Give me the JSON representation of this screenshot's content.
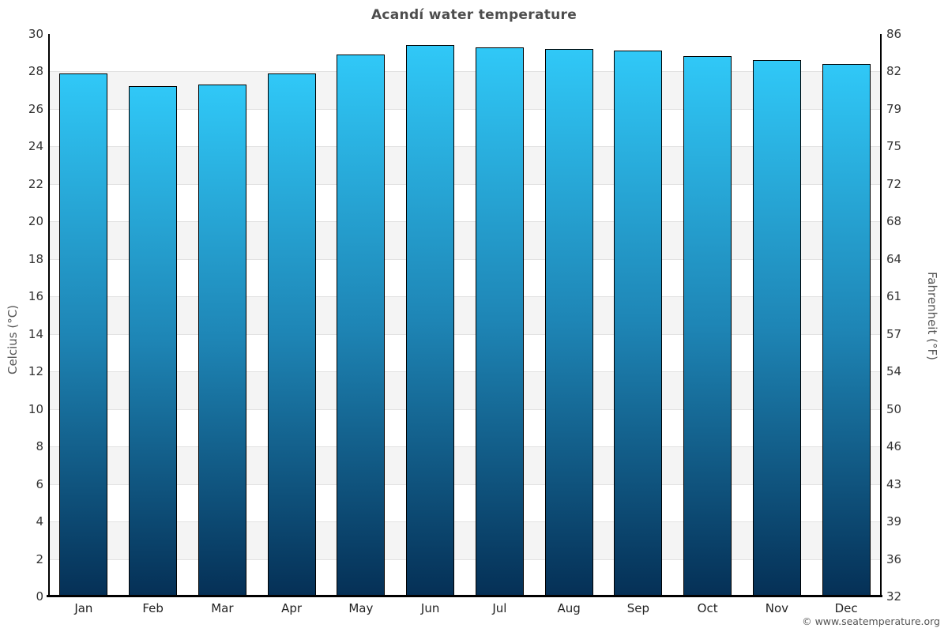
{
  "title": "Acandí water temperature",
  "footer_credit": "© www.seatemperature.org",
  "axes": {
    "left_label": "Celcius (°C)",
    "right_label": "Fahrenheit (°F)"
  },
  "colors": {
    "bar_gradient_top": "#30c8f7",
    "bar_gradient_mid": "#1e85b5",
    "bar_gradient_bottom": "#053056",
    "bar_border": "#000000",
    "band_gray": "#f4f4f4",
    "band_white": "#ffffff",
    "gridline": "#e2e2e2",
    "axis_line": "#000000",
    "title_text": "#4d4d4d",
    "tick_text": "#333333",
    "axis_label_text": "#555555",
    "footer_text": "#555555"
  },
  "chart_data": {
    "type": "bar",
    "title": "Acandí water temperature",
    "categories": [
      "Jan",
      "Feb",
      "Mar",
      "Apr",
      "May",
      "Jun",
      "Jul",
      "Aug",
      "Sep",
      "Oct",
      "Nov",
      "Dec"
    ],
    "values": [
      27.9,
      27.2,
      27.3,
      27.9,
      28.9,
      29.4,
      29.3,
      29.2,
      29.1,
      28.8,
      28.6,
      28.4
    ],
    "xlabel": "",
    "ylabel": "Celcius (°C)",
    "ylabel_right": "Fahrenheit (°F)",
    "ylim": [
      0,
      30
    ],
    "ytick_step": 2,
    "yticks_left": [
      0,
      2,
      4,
      6,
      8,
      10,
      12,
      14,
      16,
      18,
      20,
      22,
      24,
      26,
      28,
      30
    ],
    "yticks_right": [
      32,
      36,
      39,
      43,
      46,
      50,
      54,
      57,
      61,
      64,
      68,
      72,
      75,
      79,
      82,
      86
    ],
    "grid": "alternating horizontal bands every 2°C, white/gray",
    "legend": "none"
  }
}
